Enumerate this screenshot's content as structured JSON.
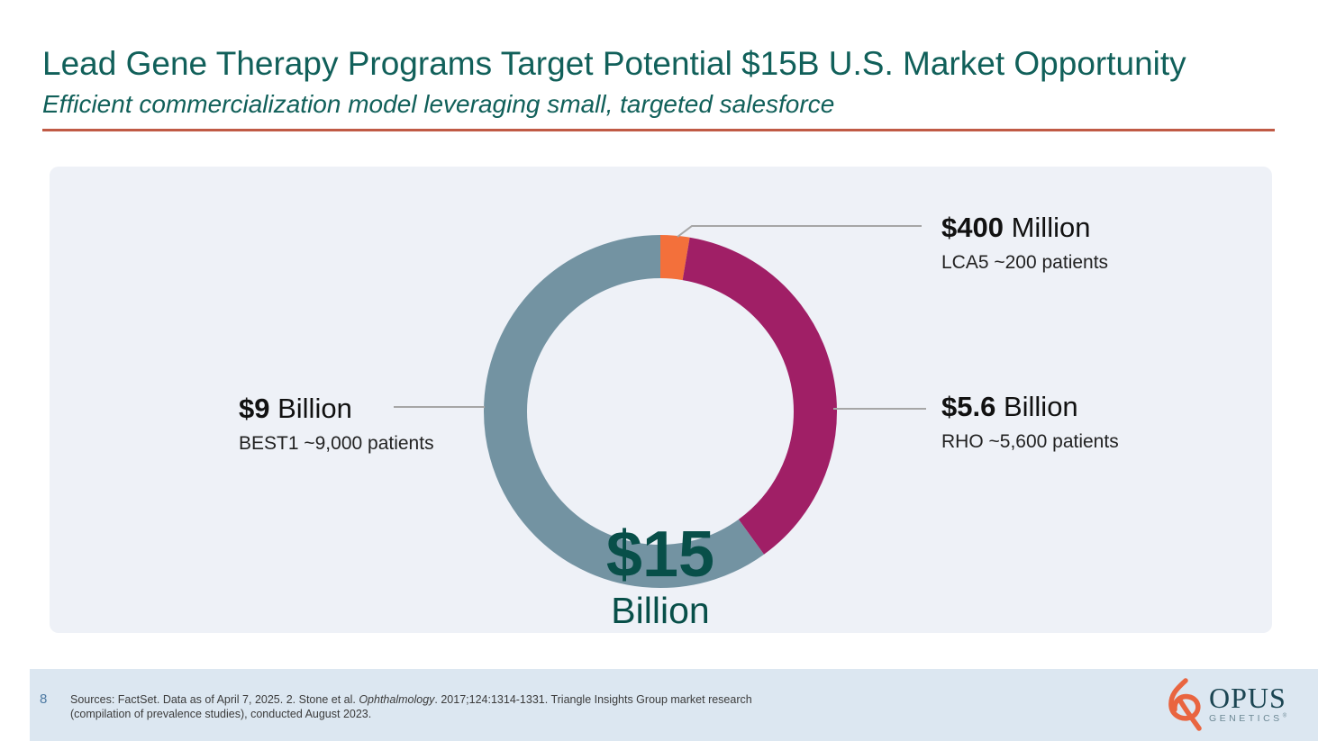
{
  "slide": {
    "title": "Lead Gene Therapy Programs Target Potential $15B U.S. Market Opportunity",
    "subtitle": "Efficient commercialization model leveraging small, targeted salesforce",
    "page_number": "8",
    "sources": {
      "prefix": "Sources: FactSet. Data as of April 7, 2025. 2. Stone et al. ",
      "italic": "Ophthalmology",
      "suffix": ". 2017;124:1314-1331. Triangle Insights Group market research (compilation of prevalence studies), conducted August 2023."
    }
  },
  "chart_data": {
    "type": "pie",
    "subtype": "donut",
    "title": "U.S. market opportunity by gene therapy program",
    "center_value": "$15",
    "center_unit": "Billion",
    "total_billion": 15,
    "start_angle_deg": 0,
    "direction": "clockwise",
    "segments": [
      {
        "value_label": "$400",
        "unit_label": "Million",
        "sublabel": "LCA5 ~200 patients",
        "value_billion": 0.4,
        "percent": 2.67,
        "color": "#f3703b"
      },
      {
        "value_label": "$5.6",
        "unit_label": "Billion",
        "sublabel": "RHO ~5,600 patients",
        "value_billion": 5.6,
        "percent": 37.33,
        "color": "#a01f66"
      },
      {
        "value_label": "$9",
        "unit_label": "Billion",
        "sublabel": "BEST1 ~9,000 patients",
        "value_billion": 9.0,
        "percent": 60.0,
        "color": "#7393a2"
      }
    ],
    "legend_position": "callout-labels",
    "grid": false
  },
  "logo": {
    "name": "OPUS",
    "sub": "GENETICS",
    "mark": "®"
  },
  "colors": {
    "title_teal": "#11605a",
    "center_teal": "#084f49",
    "divider_terracotta": "#c05a45",
    "panel_bg": "#eef1f7",
    "footer_band": "#dce7f1",
    "callout_line": "#a6a6a6",
    "logo_orange": "#e96540"
  }
}
